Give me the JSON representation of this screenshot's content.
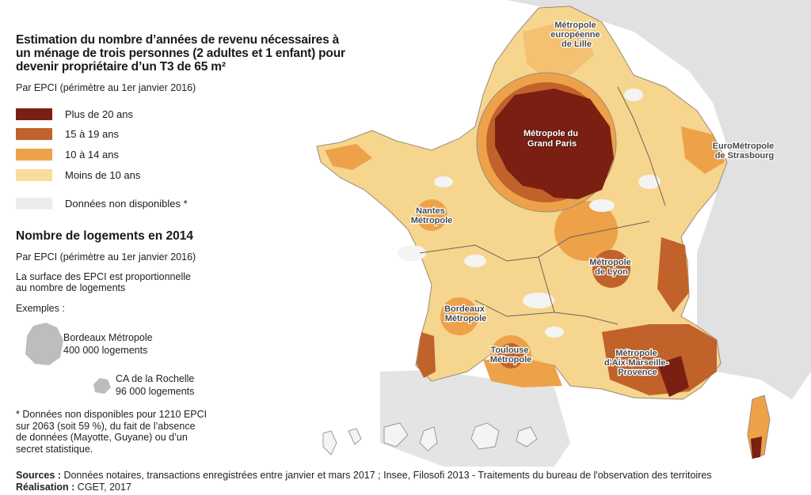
{
  "title": "Estimation du nombre d’années de revenu nécessaires à un ménage de trois personnes (2 adultes et 1 enfant) pour devenir propriétaire d’un T3 de 65 m²",
  "subtitle": "Par EPCI (périmètre au 1er janvier 2016)",
  "legend": [
    {
      "label": "Plus de 20 ans",
      "color": "#7a1f12"
    },
    {
      "label": "15 à 19 ans",
      "color": "#c0622a"
    },
    {
      "label": "10 à 14 ans",
      "color": "#eda24a"
    },
    {
      "label": "Moins de 10 ans",
      "color": "#f8dc9c"
    },
    {
      "label": "Données non disponibles *",
      "color": "#ececec"
    }
  ],
  "section2": {
    "title": "Nombre de logements en 2014",
    "subtitle": "Par EPCI (périmètre au 1er janvier 2016)",
    "text1": "La surface des EPCI est proportionnelle",
    "text2": "au nombre de logements",
    "examples_label": "Exemples :",
    "example1_name": "Bordeaux Métropole",
    "example1_value": "400 000 logements",
    "example2_name": "CA de la Rochelle",
    "example2_value": "96 000 logements"
  },
  "footnote": {
    "line1": "* Données non disponibles pour 1210 EPCI",
    "line2": "sur 2063 (soit 59 %), du fait de l’absence",
    "line3": "de données (Mayotte, Guyane) ou d’un",
    "line4": "secret statistique."
  },
  "sources_label": "Sources :",
  "sources_text": " Données notaires, transactions enregistrées entre janvier et mars 2017 ; Insee, Filosofi 2013 - Traitements du bureau de l'observation des territoires",
  "realisation_label": "Réalisation :",
  "realisation_text": " CGET, 2017",
  "map_labels": {
    "lille1": "Métropole",
    "lille2": "européenne",
    "lille3": "de Lille",
    "paris1": "Métropole du",
    "paris2": "Grand Paris",
    "strasbourg1": "EuroMétropole",
    "strasbourg2": "de Strasbourg",
    "nantes1": "Nantes",
    "nantes2": "Métropole",
    "lyon1": "Métropole",
    "lyon2": "de Lyon",
    "bordeaux1": "Bordeaux",
    "bordeaux2": "Métropole",
    "toulouse1": "Toulouse",
    "toulouse2": "Métropole",
    "marseille1": "Métropole",
    "marseille2": "d’Aix-Marseille-",
    "marseille3": "Provence"
  }
}
